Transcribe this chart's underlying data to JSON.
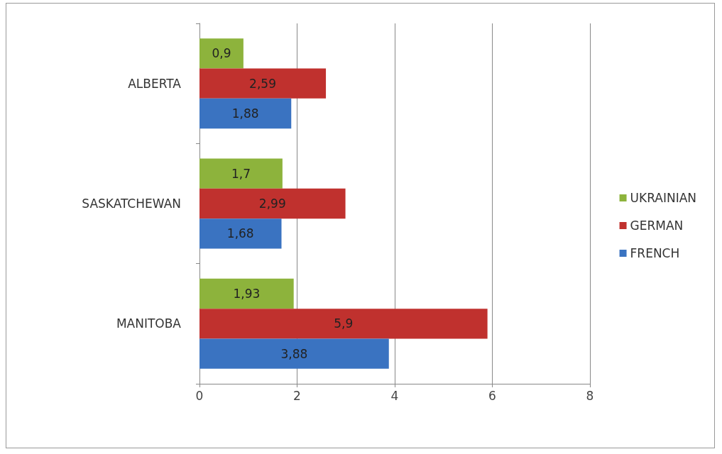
{
  "chart_data": {
    "type": "bar",
    "orientation": "horizontal",
    "categories": [
      "ALBERTA",
      "SASKATCHEWAN",
      "MANITOBA"
    ],
    "series": [
      {
        "name": "UKRAINIAN",
        "color": "#8db33c",
        "values": [
          0.9,
          1.7,
          1.93
        ],
        "value_labels": [
          "0,9",
          "1,7",
          "1,93"
        ]
      },
      {
        "name": "GERMAN",
        "color": "#c0312e",
        "values": [
          2.59,
          2.99,
          5.9
        ],
        "value_labels": [
          "2,59",
          "2,99",
          "5,9"
        ]
      },
      {
        "name": "FRENCH",
        "color": "#3a73c1",
        "values": [
          1.88,
          1.68,
          3.88
        ],
        "value_labels": [
          "1,88",
          "1,68",
          "3,88"
        ]
      }
    ],
    "xlim": [
      0,
      8
    ],
    "xticks": [
      0,
      2,
      4,
      6,
      8
    ],
    "grid": "x",
    "legend": "right"
  }
}
